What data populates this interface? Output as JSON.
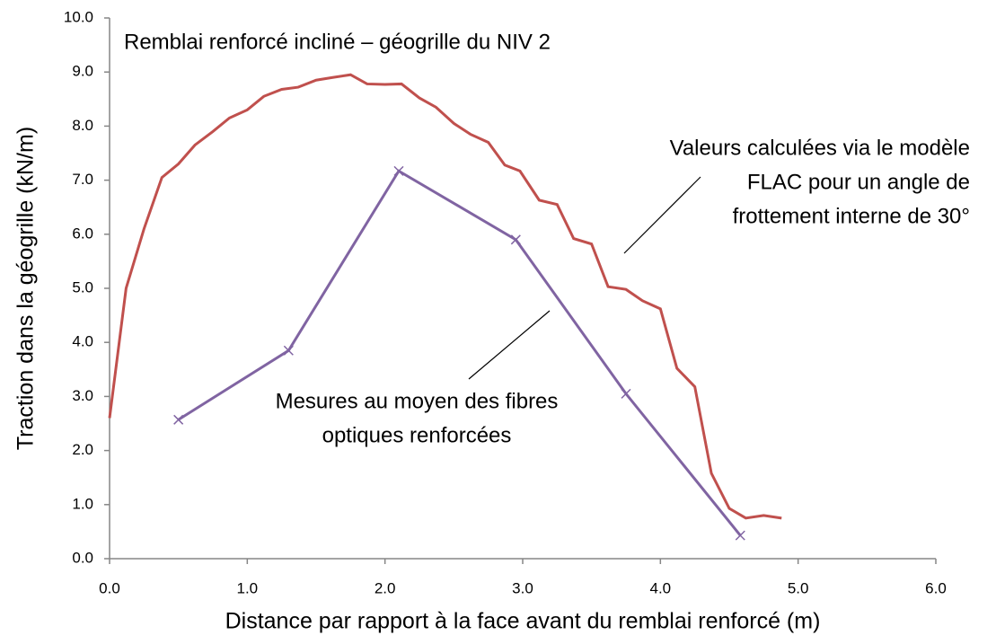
{
  "chart_data": {
    "type": "line",
    "title": "Remblai renforcé incliné – géogrille du NIV 2",
    "x_label": "Distance par rapport à la face avant du remblai renforcé (m)",
    "y_label": "Traction dans la géogrille (kN/m)",
    "xlim": [
      0,
      6
    ],
    "ylim": [
      0,
      10
    ],
    "xticks": [
      {
        "value": 0,
        "label": "0.0"
      },
      {
        "value": 1,
        "label": "1.0"
      },
      {
        "value": 2,
        "label": "2.0"
      },
      {
        "value": 3,
        "label": "3.0"
      },
      {
        "value": 4,
        "label": "4.0"
      },
      {
        "value": 5,
        "label": "5.0"
      },
      {
        "value": 6,
        "label": "6.0"
      }
    ],
    "yticks": [
      {
        "value": 0,
        "label": "0.0"
      },
      {
        "value": 1,
        "label": "1.0"
      },
      {
        "value": 2,
        "label": "2.0"
      },
      {
        "value": 3,
        "label": "3.0"
      },
      {
        "value": 4,
        "label": "4.0"
      },
      {
        "value": 5,
        "label": "5.0"
      },
      {
        "value": 6,
        "label": "6.0"
      },
      {
        "value": 7,
        "label": "7.0"
      },
      {
        "value": 8,
        "label": "8.0"
      },
      {
        "value": 9,
        "label": "9.0"
      },
      {
        "value": 10,
        "label": "10.0"
      }
    ],
    "grid": false,
    "series": [
      {
        "color": "#c0504d",
        "marker": "none",
        "x": [
          0,
          0.12,
          0.25,
          0.38,
          0.5,
          0.62,
          0.75,
          0.87,
          1.0,
          1.12,
          1.25,
          1.37,
          1.5,
          1.62,
          1.75,
          1.87,
          2.0,
          2.12,
          2.25,
          2.37,
          2.5,
          2.62,
          2.75,
          2.87,
          2.98,
          3.12,
          3.25,
          3.37,
          3.5,
          3.62,
          3.75,
          3.87,
          4.0,
          4.12,
          4.25,
          4.37,
          4.5,
          4.62,
          4.75,
          4.88
        ],
        "values": [
          2.6,
          5.0,
          6.1,
          7.05,
          7.3,
          7.65,
          7.9,
          8.15,
          8.3,
          8.55,
          8.68,
          8.72,
          8.85,
          8.9,
          8.95,
          8.78,
          8.77,
          8.78,
          8.52,
          8.35,
          8.05,
          7.85,
          7.7,
          7.28,
          7.17,
          6.63,
          6.55,
          5.92,
          5.82,
          5.03,
          4.98,
          4.77,
          4.62,
          3.52,
          3.18,
          1.58,
          0.93,
          0.75,
          0.8,
          0.75
        ]
      },
      {
        "color": "#8064a2",
        "marker": "x",
        "x": [
          0.5,
          1.3,
          2.1,
          2.95,
          3.75,
          4.58
        ],
        "values": [
          2.57,
          3.85,
          7.17,
          5.9,
          3.05,
          0.43
        ]
      }
    ],
    "annotations": [
      {
        "lines": [
          "Valeurs calculées via le modèle",
          "FLAC pour un angle de",
          "frottement interne de 30°"
        ]
      },
      {
        "lines": [
          "Mesures au moyen des fibres",
          "optiques renforcées"
        ]
      }
    ]
  }
}
